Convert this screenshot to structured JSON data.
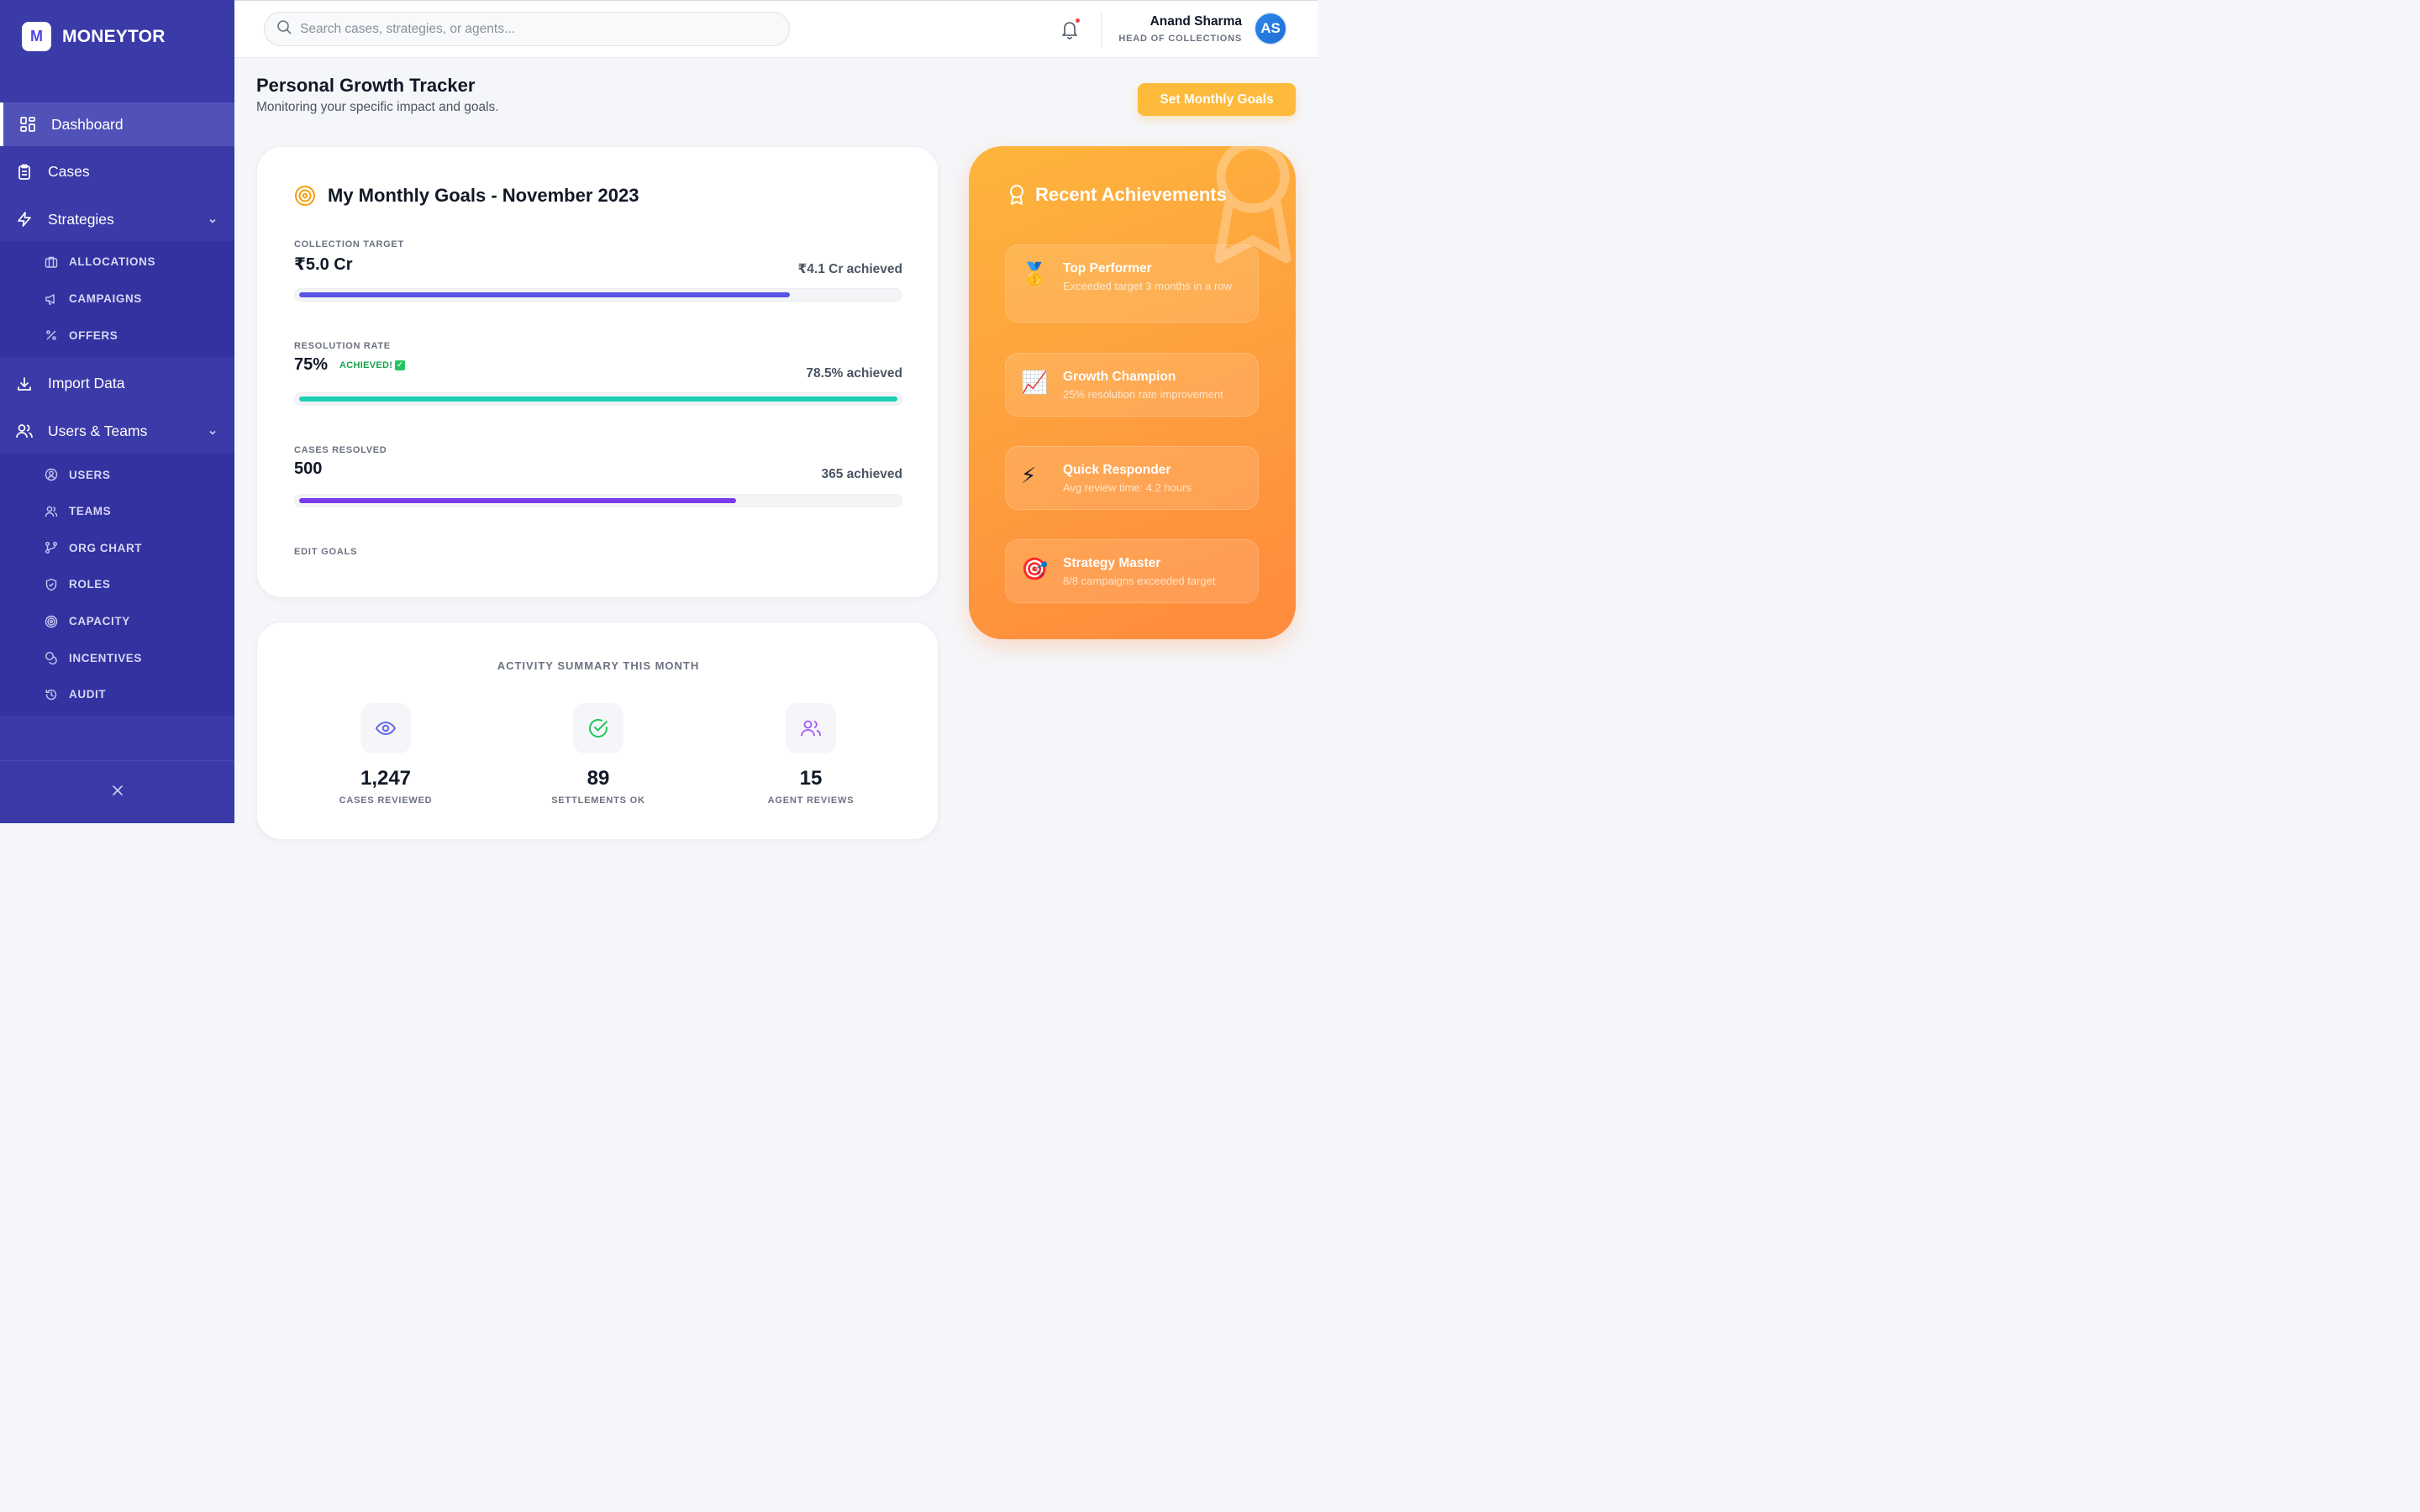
{
  "brand": {
    "mark": "M",
    "name": "MONEYTOR"
  },
  "nav": {
    "dashboard": "Dashboard",
    "cases": "Cases",
    "strategies": "Strategies",
    "strategies_sub": [
      "ALLOCATIONS",
      "CAMPAIGNS",
      "OFFERS"
    ],
    "import": "Import Data",
    "users_teams": "Users & Teams",
    "users_sub": [
      "USERS",
      "TEAMS",
      "ORG CHART",
      "ROLES",
      "CAPACITY",
      "INCENTIVES",
      "AUDIT"
    ]
  },
  "search": {
    "placeholder": "Search cases, strategies, or agents..."
  },
  "user": {
    "name": "Anand Sharma",
    "role": "HEAD OF COLLECTIONS",
    "initials": "AS"
  },
  "page": {
    "title": "Personal Growth Tracker",
    "subtitle": "Monitoring your specific impact and goals.",
    "cta": "Set Monthly Goals"
  },
  "goals": {
    "title": "My Monthly Goals - November 2023",
    "items": [
      {
        "label": "COLLECTION TARGET",
        "value": "₹5.0 Cr",
        "achieved": "₹4.1 Cr achieved",
        "progress": 0.82,
        "color": "#5b55e6",
        "badge": ""
      },
      {
        "label": "RESOLUTION RATE",
        "value": "75%",
        "achieved": "78.5% achieved",
        "progress": 1.0,
        "color": "#1ccfb3",
        "badge": "ACHIEVED!"
      },
      {
        "label": "CASES RESOLVED",
        "value": "500",
        "achieved": "365 achieved",
        "progress": 0.73,
        "color": "#7c3aed",
        "badge": ""
      }
    ],
    "edit": "EDIT GOALS"
  },
  "activity": {
    "title": "ACTIVITY SUMMARY THIS MONTH",
    "stats": [
      {
        "value": "1,247",
        "label": "CASES REVIEWED",
        "icon": "eye-icon",
        "color": "#6366f1"
      },
      {
        "value": "89",
        "label": "SETTLEMENTS OK",
        "icon": "check-circle-icon",
        "color": "#22c55e"
      },
      {
        "value": "15",
        "label": "AGENT REVIEWS",
        "icon": "users-icon",
        "color": "#a855f7"
      }
    ]
  },
  "achievements": {
    "title": "Recent Achievements",
    "items": [
      {
        "name": "Top Performer",
        "desc": "Exceeded target 3 months in a row",
        "icon": "medal-icon",
        "emoji": "🥇"
      },
      {
        "name": "Growth Champion",
        "desc": "25% resolution rate improvement",
        "icon": "chart-up-icon",
        "emoji": "📈"
      },
      {
        "name": "Quick Responder",
        "desc": "Avg review time: 4.2 hours",
        "icon": "lightning-icon",
        "emoji": "⚡"
      },
      {
        "name": "Strategy Master",
        "desc": "8/8 campaigns exceeded target",
        "icon": "target-dart-icon",
        "emoji": "🎯"
      }
    ]
  }
}
